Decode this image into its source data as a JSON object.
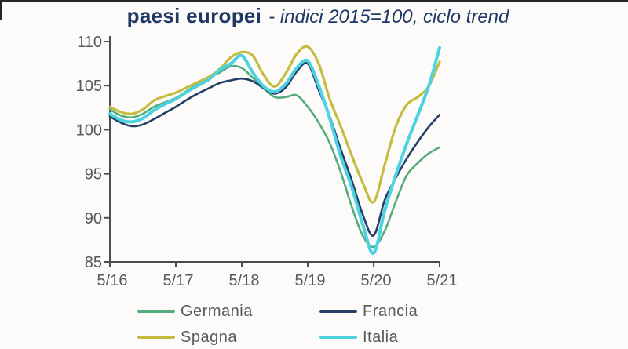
{
  "page": {
    "top_strip_color": "#262626",
    "background_color": "#fcfbf9"
  },
  "header": {
    "title_bold": "paesi europei",
    "title_italic": "- indici 2015=100, ciclo trend",
    "title_color": "#1F3864"
  },
  "chart_data": {
    "type": "line",
    "title": "paesi europei - indici 2015=100, ciclo trend",
    "grid": false,
    "legend_position": "bottom",
    "axis_color": "#4d4d4d",
    "label_color": "#595959",
    "x_axis": {
      "tick_labels": [
        "5/16",
        "5/17",
        "5/18",
        "5/19",
        "5/20",
        "5/21"
      ],
      "tick_months": [
        0,
        12,
        24,
        36,
        48,
        60
      ]
    },
    "y_axis": {
      "ticks": [
        85,
        90,
        95,
        100,
        105,
        110
      ],
      "range": [
        85,
        110
      ]
    },
    "x_months": [
      0,
      2,
      4,
      6,
      8,
      10,
      12,
      14,
      16,
      18,
      20,
      22,
      24,
      26,
      28,
      30,
      32,
      34,
      36,
      38,
      40,
      42,
      44,
      46,
      48,
      50,
      52,
      54,
      56,
      58,
      60
    ],
    "series": [
      {
        "name": "Germania",
        "color": "#55ac7c",
        "stroke_width": 2.6,
        "values": [
          102.3,
          101.6,
          101.4,
          101.8,
          102.6,
          103.1,
          103.6,
          104.4,
          105.2,
          105.9,
          106.5,
          107.2,
          107.0,
          105.9,
          104.7,
          103.7,
          103.7,
          103.9,
          102.6,
          100.8,
          98.5,
          95.2,
          91.3,
          88.0,
          86.7,
          88.5,
          91.8,
          94.8,
          96.2,
          97.3,
          98.0
        ]
      },
      {
        "name": "Francia",
        "color": "#253e66",
        "stroke_width": 2.6,
        "values": [
          101.5,
          100.8,
          100.4,
          100.6,
          101.2,
          101.9,
          102.6,
          103.4,
          104.1,
          104.7,
          105.3,
          105.6,
          105.8,
          105.5,
          104.7,
          104.1,
          104.8,
          106.6,
          107.5,
          104.5,
          101.5,
          97.8,
          94.3,
          90.4,
          88.0,
          92.0,
          94.5,
          96.7,
          98.6,
          100.3,
          101.7
        ]
      },
      {
        "name": "Spagna",
        "color": "#c4bb3f",
        "stroke_width": 3.2,
        "values": [
          102.6,
          102.0,
          101.8,
          102.3,
          103.3,
          103.8,
          104.2,
          104.8,
          105.4,
          106.0,
          106.9,
          108.2,
          108.8,
          108.4,
          106.2,
          104.9,
          106.4,
          108.6,
          109.4,
          107.5,
          103.5,
          100.4,
          97.1,
          94.0,
          91.8,
          96.0,
          100.3,
          102.8,
          103.7,
          104.9,
          107.7
        ]
      },
      {
        "name": "Italia",
        "color": "#4dd2e2",
        "stroke_width": 4,
        "values": [
          101.8,
          101.1,
          100.9,
          101.3,
          102.2,
          102.9,
          103.5,
          104.3,
          105.0,
          105.7,
          106.8,
          107.5,
          108.4,
          106.5,
          104.9,
          104.3,
          105.2,
          107.0,
          107.8,
          105.0,
          101.3,
          97.0,
          93.5,
          89.3,
          86.0,
          90.8,
          94.8,
          98.4,
          101.6,
          104.9,
          109.3
        ]
      }
    ]
  }
}
